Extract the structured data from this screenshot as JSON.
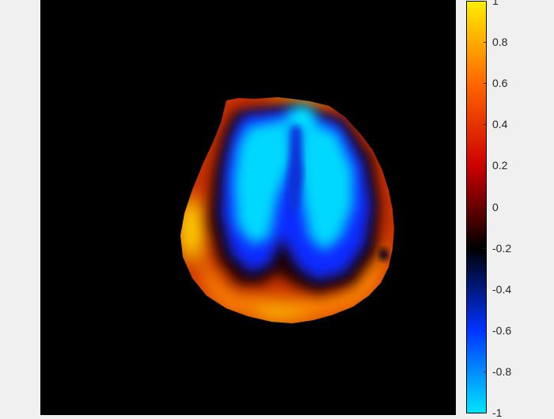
{
  "colorbar": {
    "ticks": [
      "1",
      "0.8",
      "0.6",
      "0.4",
      "0.2",
      "0",
      "-0.2",
      "-0.4",
      "-0.6",
      "-0.8",
      "-1"
    ],
    "colormap": [
      "#00e5ff",
      "#0033ff",
      "#000000",
      "#cc0000",
      "#ff6600",
      "#ffee00"
    ],
    "range": [
      -1,
      1
    ]
  },
  "colors": {
    "figure_background": "#f0f0f0",
    "axes_background": "#000000"
  }
}
